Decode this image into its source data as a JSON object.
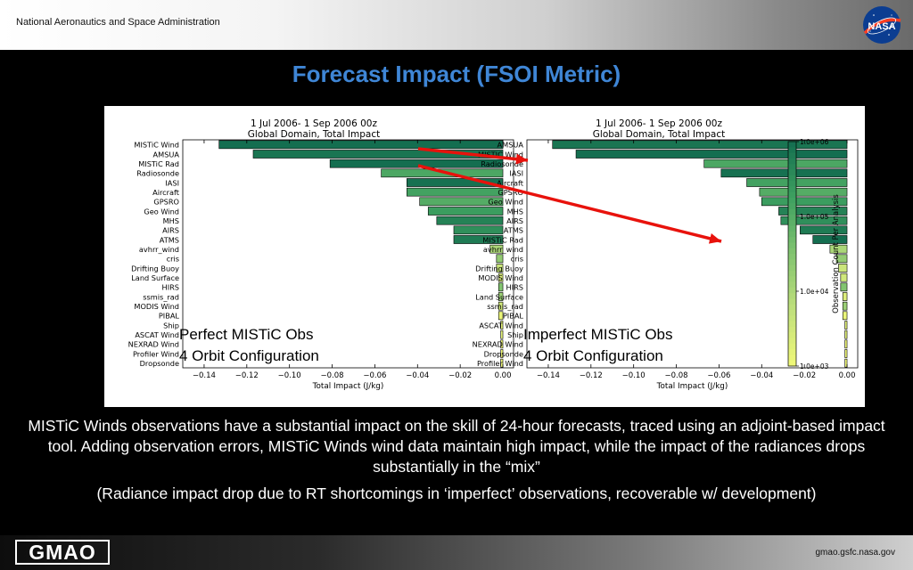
{
  "header": {
    "agency": "National Aeronautics and Space Administration",
    "logo_text": "NASA"
  },
  "slide": {
    "title": "Forecast Impact (FSOI Metric)"
  },
  "caption": {
    "p1": "MISTiC Winds observations have a substantial impact on the skill of 24-hour forecasts, traced using an adjoint-based impact tool.  Adding observation errors, MISTiC Winds wind data maintain high impact, while the impact of the radiances drops substantially in the “mix”",
    "p2": "(Radiance impact drop due to RT shortcomings in ‘imperfect’ observations, recoverable w/ development)"
  },
  "footer": {
    "logo": "GMAO",
    "url": "gmao.gsfc.nasa.gov"
  },
  "colorbar": {
    "label": "Observation Count Per Analysis",
    "ticks": [
      "1.0e+06",
      "1.0e+05",
      "1.0e+04",
      "1.0e+03"
    ]
  },
  "chart_data": [
    {
      "type": "bar",
      "orientation": "horizontal",
      "title": "1 Jul 2006- 1 Sep 2006 00z",
      "subtitle": "Global Domain, Total Impact",
      "xlabel": "Total Impact (J/kg)",
      "xlim": [
        -0.15,
        0.005
      ],
      "xticks": [
        "−0.14",
        "−0.12",
        "−0.10",
        "−0.08",
        "−0.06",
        "−0.04",
        "−0.02",
        "0.00"
      ],
      "annotation": [
        "Perfect MISTiC Obs",
        "4 Orbit Configuration"
      ],
      "categories": [
        "MISTiC Wind",
        "AMSUA",
        "MISTiC Rad",
        "Radiosonde",
        "IASI",
        "Aircraft",
        "GPSRO",
        "Geo Wind",
        "MHS",
        "AIRS",
        "ATMS",
        "avhrr_wind",
        "cris",
        "Drifting Buoy",
        "Land Surface",
        "HIRS",
        "ssmis_rad",
        "MODIS Wind",
        "PIBAL",
        "Ship",
        "ASCAT Wind",
        "NEXRAD Wind",
        "Profiler Wind",
        "Dropsonde"
      ],
      "values": [
        -0.133,
        -0.117,
        -0.081,
        -0.057,
        -0.045,
        -0.045,
        -0.039,
        -0.035,
        -0.031,
        -0.023,
        -0.023,
        -0.006,
        -0.003,
        -0.003,
        -0.002,
        -0.002,
        -0.002,
        -0.002,
        -0.002,
        -0.001,
        -0.001,
        -0.001,
        -0.001,
        -0.001
      ],
      "obs_count": [
        6.0,
        5.9,
        6.0,
        5.1,
        5.95,
        5.2,
        5.0,
        5.3,
        5.7,
        5.5,
        5.8,
        4.0,
        4.3,
        3.6,
        3.3,
        4.5,
        4.2,
        3.5,
        3.1,
        3.2,
        3.2,
        3.0,
        3.0,
        3.0
      ]
    },
    {
      "type": "bar",
      "orientation": "horizontal",
      "title": "1 Jul 2006- 1 Sep 2006 00z",
      "subtitle": "Global Domain, Total Impact",
      "xlabel": "Total Impact (J/kg)",
      "xlim": [
        -0.15,
        0.005
      ],
      "xticks": [
        "−0.14",
        "−0.12",
        "−0.10",
        "−0.08",
        "−0.06",
        "−0.04",
        "−0.02",
        "0.00"
      ],
      "annotation": [
        "Imperfect MISTiC Obs",
        "4 Orbit Configuration"
      ],
      "categories": [
        "AMSUA",
        "MISTIC Wind",
        "Radiosonde",
        "IASI",
        "Aircraft",
        "GPSRO",
        "Geo Wind",
        "MHS",
        "AIRS",
        "ATMS",
        "MISTiC Rad",
        "avhrr_wind",
        "cris",
        "Drifting Buoy",
        "MODIS Wind",
        "HIRS",
        "Land Surface",
        "ssmis_rad",
        "PIBAL",
        "ASCAT Wind",
        "Ship",
        "NEXRAD Wind",
        "Dropsonde",
        "Profiler Wind"
      ],
      "values": [
        -0.138,
        -0.127,
        -0.067,
        -0.059,
        -0.047,
        -0.041,
        -0.04,
        -0.032,
        -0.031,
        -0.022,
        -0.016,
        -0.008,
        -0.005,
        -0.004,
        -0.003,
        -0.003,
        -0.002,
        -0.002,
        -0.002,
        -0.001,
        -0.001,
        -0.001,
        -0.001,
        -0.001
      ],
      "obs_count": [
        5.9,
        6.0,
        5.1,
        5.95,
        5.2,
        5.0,
        5.3,
        5.7,
        5.5,
        5.8,
        6.0,
        4.0,
        4.3,
        3.6,
        3.5,
        4.5,
        3.3,
        4.2,
        3.1,
        3.2,
        3.2,
        3.0,
        3.0,
        3.0
      ]
    }
  ]
}
